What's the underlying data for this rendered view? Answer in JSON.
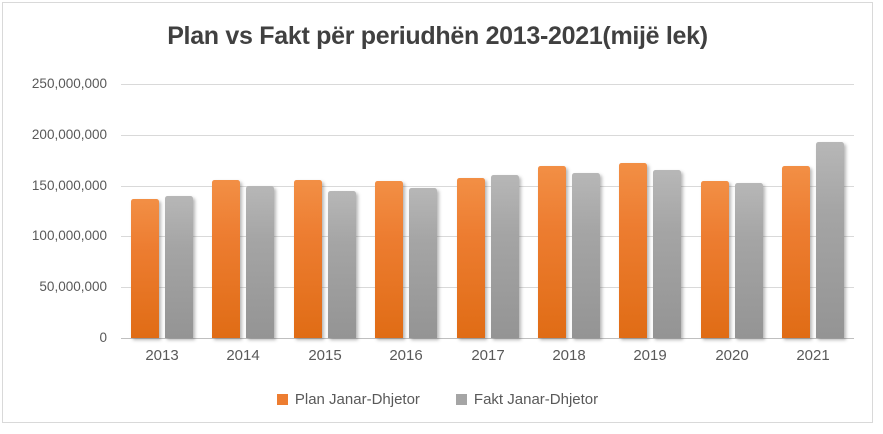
{
  "title": "Plan vs Fakt për periudhën 2013-2021(mijë lek)",
  "colors": {
    "plan_series": "#ED7D31",
    "fakt_series": "#A5A5A5",
    "title_text": "#404040",
    "axis_text": "#595959",
    "gridline": "#D9D9D9",
    "axis_line": "#BFBFBF",
    "frame_border": "#D9D9D9",
    "background": "#FFFFFF"
  },
  "chart_data": {
    "type": "bar",
    "title": "Plan vs Fakt për periudhën 2013-2021(mijë lek)",
    "categories": [
      "2013",
      "2014",
      "2015",
      "2016",
      "2017",
      "2018",
      "2019",
      "2020",
      "2021"
    ],
    "series": [
      {
        "name": "Plan Janar-Dhjetor",
        "color": "#ED7D31",
        "values": [
          137000000,
          156000000,
          156000000,
          155000000,
          157000000,
          169000000,
          172000000,
          155000000,
          169000000
        ]
      },
      {
        "name": "Fakt Janar-Dhjetor",
        "color": "#A5A5A5",
        "values": [
          140000000,
          150000000,
          145000000,
          148000000,
          160000000,
          162000000,
          165000000,
          153000000,
          193000000
        ]
      }
    ],
    "xlabel": "",
    "ylabel": "",
    "ylim": [
      0,
      250000000
    ],
    "ytick_interval": 50000000,
    "ytick_labels": [
      "0",
      "50,000,000",
      "100,000,000",
      "150,000,000",
      "200,000,000",
      "250,000,000"
    ],
    "grid": true,
    "legend_position": "bottom"
  }
}
